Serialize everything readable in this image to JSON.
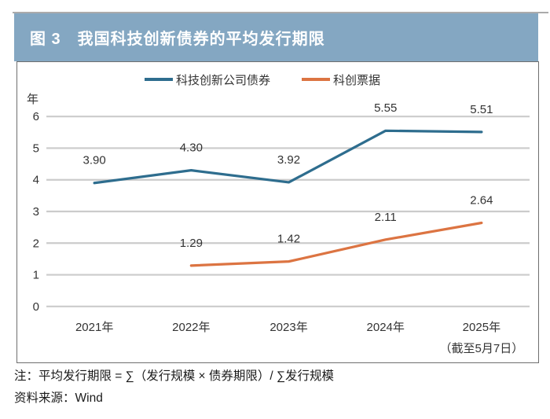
{
  "figure": {
    "title": "图 3　我国科技创新债券的平均发行期限",
    "note": "注：平均发行期限 = ∑（发行规模 × 债券期限）/ ∑发行规模",
    "source": "资料来源：Wind"
  },
  "colors": {
    "header_bg": "#84a7c2",
    "grid": "#cbcbcb",
    "axis_text": "#333333",
    "series_blue": "#2e6d8e",
    "series_orange": "#dc7442"
  },
  "chart_data": {
    "type": "line",
    "title": "我国科技创新债券的平均发行期限",
    "unit_label": "年",
    "categories": [
      "2021年",
      "2022年",
      "2023年",
      "2024年",
      "2025年"
    ],
    "category_note": {
      "index": 4,
      "text": "（截至5月7日）"
    },
    "series": [
      {
        "name": "科技创新公司债券",
        "color": "#2e6d8e",
        "values": [
          3.9,
          4.3,
          3.92,
          5.55,
          5.51
        ]
      },
      {
        "name": "科创票据",
        "color": "#dc7442",
        "values": [
          null,
          1.29,
          1.42,
          2.11,
          2.64
        ]
      }
    ],
    "ylim": [
      0,
      6
    ],
    "ytick_step": 1,
    "grid": true,
    "legend_position": "top"
  }
}
